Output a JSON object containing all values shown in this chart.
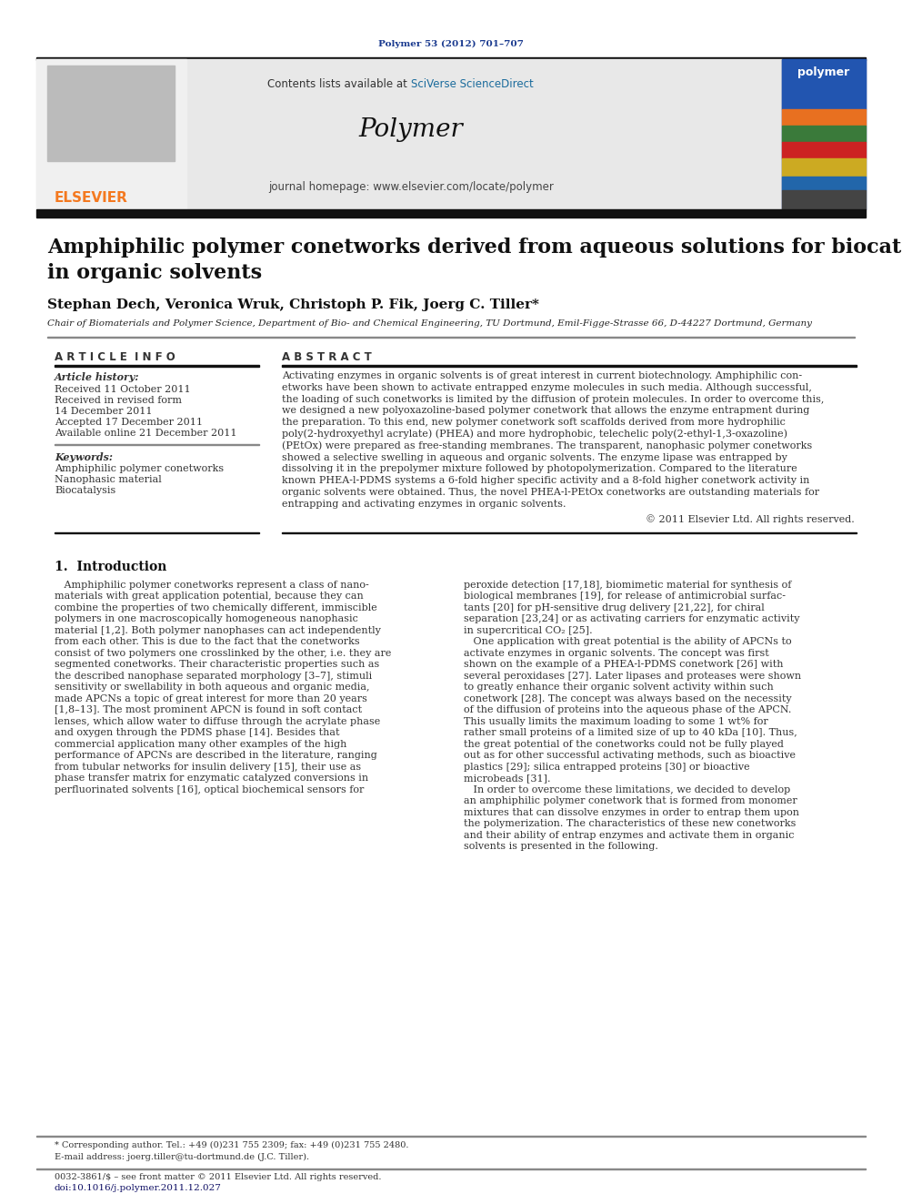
{
  "page_bg": "#ffffff",
  "top_journal_ref": "Polymer 53 (2012) 701–707",
  "top_journal_ref_color": "#1a3a8f",
  "header_bg": "#e8e8e8",
  "header_text_contents": "Contents lists available at ",
  "header_link_text": "SciVerse ScienceDirect",
  "header_link_color": "#1a6b9c",
  "journal_name": "Polymer",
  "journal_homepage": "journal homepage: www.elsevier.com/locate/polymer",
  "elsevier_color": "#f47920",
  "article_title_line1": "Amphiphilic polymer conetworks derived from aqueous solutions for biocatalysis",
  "article_title_line2": "in organic solvents",
  "authors": "Stephan Dech, Veronica Wruk, Christoph P. Fik, Joerg C. Tiller*",
  "affiliation": "Chair of Biomaterials and Polymer Science, Department of Bio- and Chemical Engineering, TU Dortmund, Emil-Figge-Strasse 66, D-44227 Dortmund, Germany",
  "article_info_header": "A R T I C L E  I N F O",
  "abstract_header": "A B S T R A C T",
  "article_history_label": "Article history:",
  "received_line1": "Received 11 October 2011",
  "received_line2": "Received in revised form",
  "received_line2b": "14 December 2011",
  "accepted_line": "Accepted 17 December 2011",
  "available_line": "Available online 21 December 2011",
  "keywords_label": "Keywords:",
  "keyword1": "Amphiphilic polymer conetworks",
  "keyword2": "Nanophasic material",
  "keyword3": "Biocatalysis",
  "abstract_lines": [
    "Activating enzymes in organic solvents is of great interest in current biotechnology. Amphiphilic con-",
    "etworks have been shown to activate entrapped enzyme molecules in such media. Although successful,",
    "the loading of such conetworks is limited by the diffusion of protein molecules. In order to overcome this,",
    "we designed a new polyoxazoline-based polymer conetwork that allows the enzyme entrapment during",
    "the preparation. To this end, new polymer conetwork soft scaffolds derived from more hydrophilic",
    "poly(2-hydroxyethyl acrylate) (PHEA) and more hydrophobic, telechelic poly(2-ethyl-1,3-oxazoline)",
    "(PEtOx) were prepared as free-standing membranes. The transparent, nanophasic polymer conetworks",
    "showed a selective swelling in aqueous and organic solvents. The enzyme lipase was entrapped by",
    "dissolving it in the prepolymer mixture followed by photopolymerization. Compared to the literature",
    "known PHEA-l-PDMS systems a 6-fold higher specific activity and a 8-fold higher conetwork activity in",
    "organic solvents were obtained. Thus, the novel PHEA-l-PEtOx conetworks are outstanding materials for",
    "entrapping and activating enzymes in organic solvents."
  ],
  "copyright_text": "© 2011 Elsevier Ltd. All rights reserved.",
  "section1_header": "1.  Introduction",
  "intro_left_lines": [
    "   Amphiphilic polymer conetworks represent a class of nano-",
    "materials with great application potential, because they can",
    "combine the properties of two chemically different, immiscible",
    "polymers in one macroscopically homogeneous nanophasic",
    "material [1,2]. Both polymer nanophases can act independently",
    "from each other. This is due to the fact that the conetworks",
    "consist of two polymers one crosslinked by the other, i.e. they are",
    "segmented conetworks. Their characteristic properties such as",
    "the described nanophase separated morphology [3–7], stimuli",
    "sensitivity or swellability in both aqueous and organic media,",
    "made APCNs a topic of great interest for more than 20 years",
    "[1,8–13]. The most prominent APCN is found in soft contact",
    "lenses, which allow water to diffuse through the acrylate phase",
    "and oxygen through the PDMS phase [14]. Besides that",
    "commercial application many other examples of the high",
    "performance of APCNs are described in the literature, ranging",
    "from tubular networks for insulin delivery [15], their use as",
    "phase transfer matrix for enzymatic catalyzed conversions in",
    "perfluorinated solvents [16], optical biochemical sensors for"
  ],
  "intro_right_lines": [
    "peroxide detection [17,18], biomimetic material for synthesis of",
    "biological membranes [19], for release of antimicrobial surfac-",
    "tants [20] for pH-sensitive drug delivery [21,22], for chiral",
    "separation [23,24] or as activating carriers for enzymatic activity",
    "in supercritical CO₂ [25].",
    "   One application with great potential is the ability of APCNs to",
    "activate enzymes in organic solvents. The concept was first",
    "shown on the example of a PHEA-l-PDMS conetwork [26] with",
    "several peroxidases [27]. Later lipases and proteases were shown",
    "to greatly enhance their organic solvent activity within such",
    "conetwork [28]. The concept was always based on the necessity",
    "of the diffusion of proteins into the aqueous phase of the APCN.",
    "This usually limits the maximum loading to some 1 wt% for",
    "rather small proteins of a limited size of up to 40 kDa [10]. Thus,",
    "the great potential of the conetworks could not be fully played",
    "out as for other successful activating methods, such as bioactive",
    "plastics [29]; silica entrapped proteins [30] or bioactive",
    "microbeads [31].",
    "   In order to overcome these limitations, we decided to develop",
    "an amphiphilic polymer conetwork that is formed from monomer",
    "mixtures that can dissolve enzymes in order to entrap them upon",
    "the polymerization. The characteristics of these new conetworks",
    "and their ability of entrap enzymes and activate them in organic",
    "solvents is presented in the following."
  ],
  "footnote_star": "* Corresponding author. Tel.: +49 (0)231 755 2309; fax: +49 (0)231 755 2480.",
  "footnote_email": "E-mail address: joerg.tiller@tu-dortmund.de (J.C. Tiller).",
  "footer_issn": "0032-3861/$ – see front matter © 2011 Elsevier Ltd. All rights reserved.",
  "footer_doi": "doi:10.1016/j.polymer.2011.12.027"
}
